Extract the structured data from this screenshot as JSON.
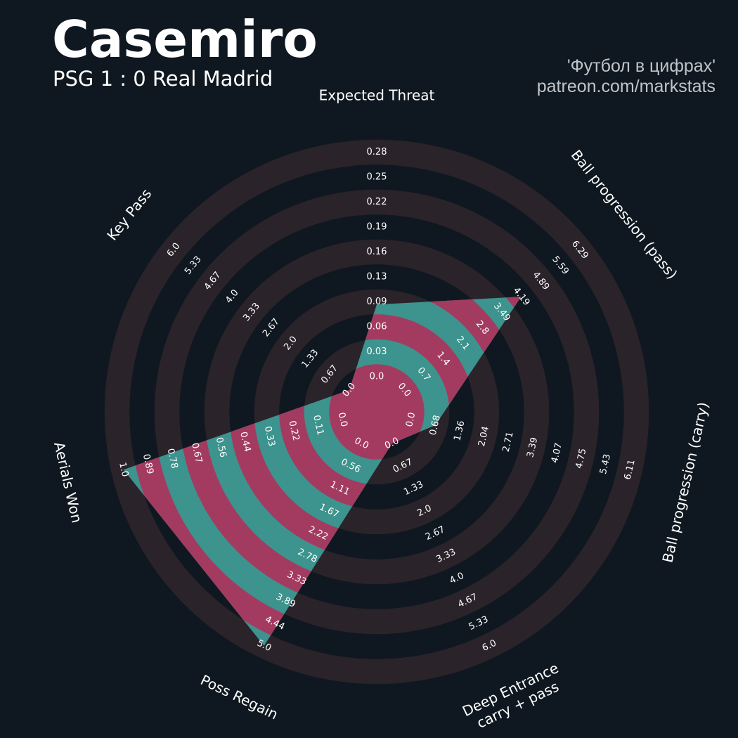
{
  "header": {
    "title": "Casemiro",
    "subtitle": "PSG 1 : 0 Real Madrid",
    "credit_line1": "'Футбол в цифрах'",
    "credit_line2": "patreon.com/markstats"
  },
  "colors": {
    "background": "#0f1820",
    "ring_band": "#2a232a",
    "fill_a": "#3d938d",
    "fill_b": "#a33b60",
    "text": "#ffffff",
    "credit": "#c0c4c8"
  },
  "chart_data": {
    "type": "radar",
    "rings": 10,
    "params": [
      {
        "name": "Expected Threat",
        "lines": [
          "Expected Threat"
        ],
        "value": 0.09,
        "ticks": [
          "0.0",
          "0.03",
          "0.06",
          "0.09",
          "0.13",
          "0.16",
          "0.19",
          "0.22",
          "0.25",
          "0.28"
        ]
      },
      {
        "name": "Ball progression (pass)",
        "lines": [
          "Ball progression (pass)"
        ],
        "value": 4.19,
        "ticks": [
          "0.0",
          "0.7",
          "1.4",
          "2.1",
          "2.8",
          "3.49",
          "4.19",
          "4.89",
          "5.59",
          "6.29"
        ]
      },
      {
        "name": "Ball progression (carry)",
        "lines": [
          "Ball progression (carry)"
        ],
        "value": 0.68,
        "ticks": [
          "0.0",
          "0.68",
          "1.36",
          "2.04",
          "2.71",
          "3.39",
          "4.07",
          "4.75",
          "5.43",
          "6.11"
        ]
      },
      {
        "name": "Deep Entrance carry + pass",
        "lines": [
          "Deep Entrance",
          "carry + pass"
        ],
        "value": 0.0,
        "ticks": [
          "0.0",
          "0.67",
          "1.33",
          "2.0",
          "2.67",
          "3.33",
          "4.0",
          "4.67",
          "5.33",
          "6.0"
        ]
      },
      {
        "name": "Poss Regain",
        "lines": [
          "Poss Regain"
        ],
        "value": 5.0,
        "ticks": [
          "0.0",
          "0.56",
          "1.11",
          "1.67",
          "2.22",
          "2.78",
          "3.33",
          "3.89",
          "4.44",
          "5.0"
        ]
      },
      {
        "name": "Aerials Won",
        "lines": [
          "Aerials Won"
        ],
        "value": 1.0,
        "ticks": [
          "0.0",
          "0.11",
          "0.22",
          "0.33",
          "0.44",
          "0.56",
          "0.67",
          "0.78",
          "0.89",
          "1.0"
        ]
      },
      {
        "name": "Key Pass",
        "lines": [
          "Key Pass"
        ],
        "value": 0.0,
        "ticks": [
          "0.0",
          "0.67",
          "1.33",
          "2.0",
          "2.67",
          "3.33",
          "4.0",
          "4.67",
          "5.33",
          "6.0"
        ]
      }
    ]
  }
}
